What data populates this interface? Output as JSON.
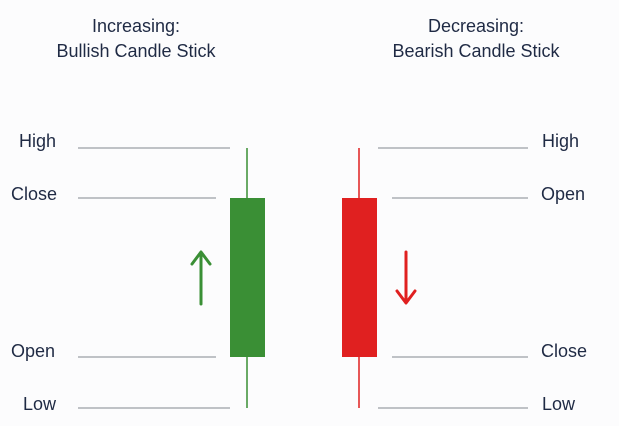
{
  "bullish": {
    "title": "Increasing:",
    "subtitle": "Bullish Candle Stick",
    "color": "#3a8f35",
    "labels": {
      "high": "High",
      "close": "Close",
      "open": "Open",
      "low": "Low"
    },
    "arrow": "up-arrow-icon"
  },
  "bearish": {
    "title": "Decreasing:",
    "subtitle": "Bearish Candle Stick",
    "color": "#e02020",
    "labels": {
      "high": "High",
      "open": "Open",
      "close": "Close",
      "low": "Low"
    },
    "arrow": "down-arrow-icon"
  },
  "guide_line_color": "#9aa0a6"
}
